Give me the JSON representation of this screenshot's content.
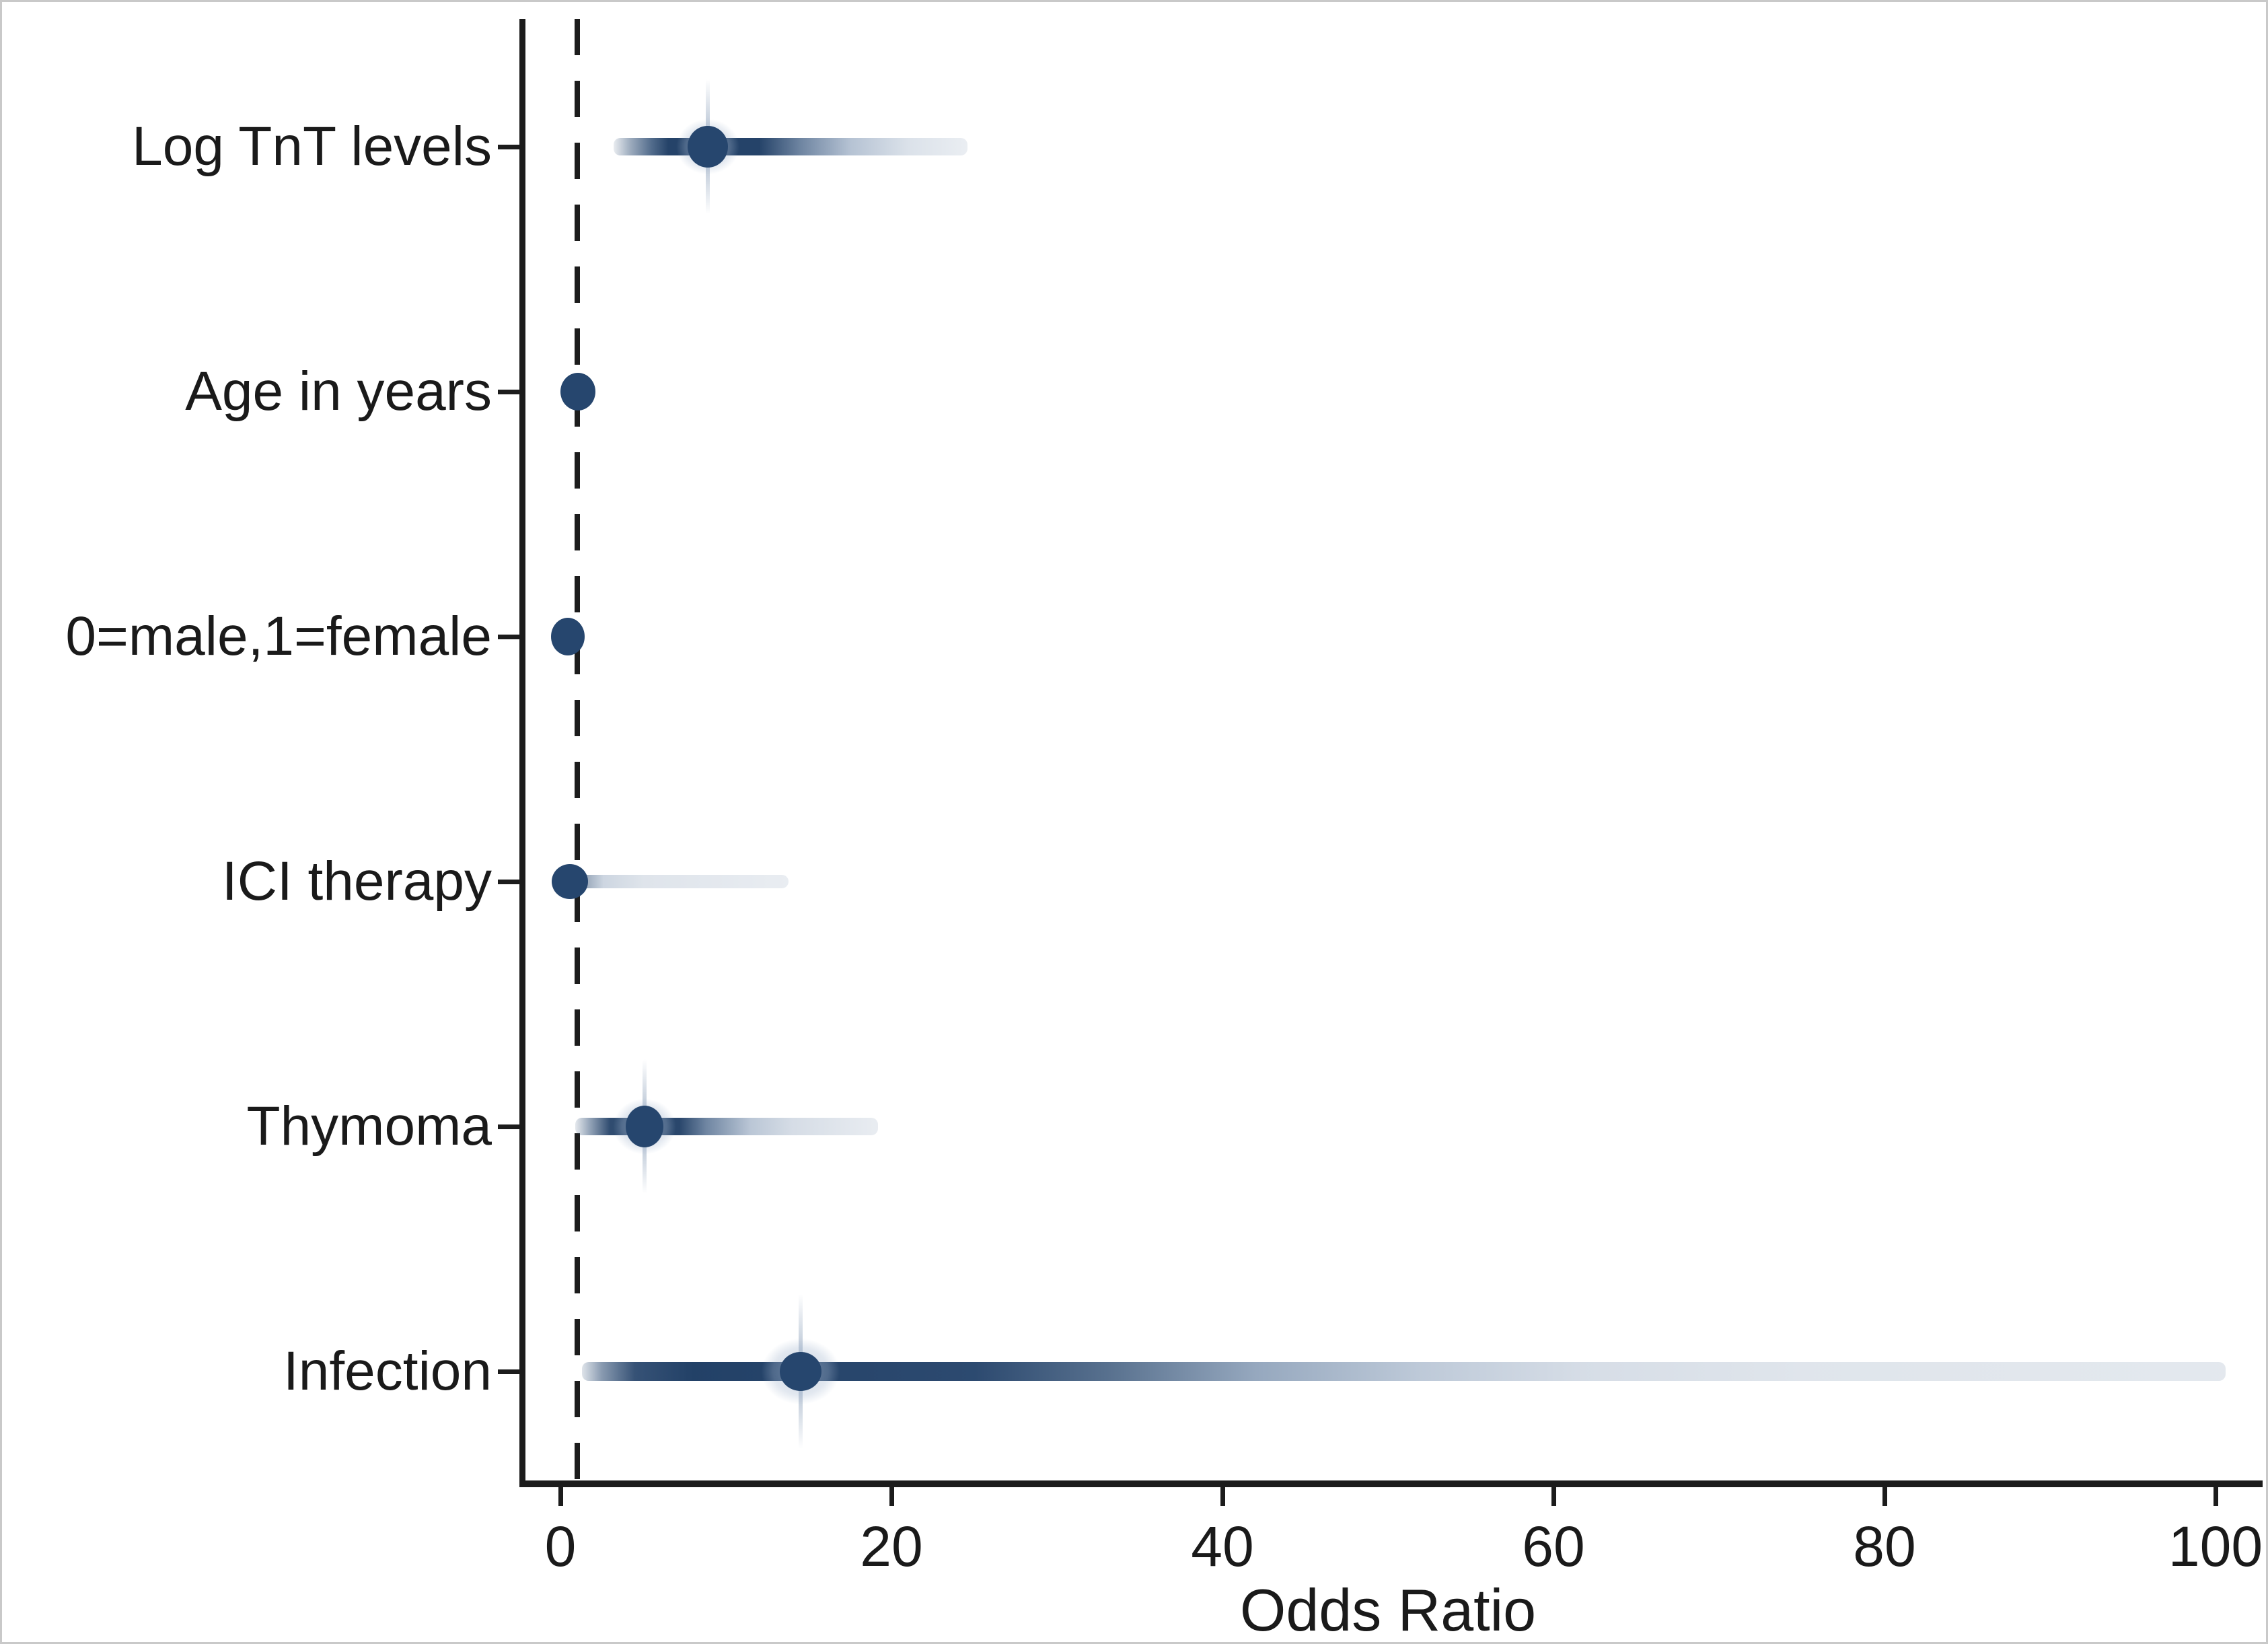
{
  "figure": {
    "background": "#ffffff",
    "border_color": "#c9c9c9"
  },
  "chart_data": {
    "type": "forest-density-strip",
    "title": "",
    "xlabel": "Odds Ratio",
    "x_ticks": [
      0,
      20,
      40,
      60,
      80,
      100
    ],
    "xlim": [
      -2.3,
      102.8
    ],
    "grid": false,
    "legend": false,
    "reference_line": {
      "at": 1,
      "style": "dashed",
      "color": "#1c1c1c"
    },
    "axis_color": "#1c1c1c",
    "text_color": "#1a1a1a",
    "point_color": "#26466e",
    "halo_color": "#a5b7cf",
    "spike_color": "#5a7396",
    "rows": [
      {
        "label": "Log TnT levels",
        "or": 8.9,
        "band": [
          3.2,
          24.6
        ],
        "dense_core": [
          6.5,
          12.0
        ],
        "band_h": 26,
        "dot": [
          60,
          62
        ],
        "spike": 200,
        "halo": [
          120,
          106
        ],
        "gradient": [
          [
            3.2,
            "rgba(39,71,111,0.10)"
          ],
          [
            4.2,
            "rgba(39,71,111,0.45)"
          ],
          [
            5.5,
            "rgba(39,71,111,0.80)"
          ],
          [
            6.5,
            "rgba(30,61,100,0.97)"
          ],
          [
            12.0,
            "rgba(30,61,100,0.97)"
          ],
          [
            14.5,
            "rgba(62,92,130,0.75)"
          ],
          [
            17.5,
            "rgba(120,144,175,0.55)"
          ],
          [
            21.0,
            "rgba(175,190,208,0.45)"
          ],
          [
            24.6,
            "rgba(203,212,223,0.40)"
          ]
        ]
      },
      {
        "label": "Age in years",
        "or": 1.05,
        "band": null,
        "band_h": 0,
        "dot": [
          52,
          56
        ],
        "spike": 0,
        "halo": null,
        "gradient": null
      },
      {
        "label": "0=male,1=female",
        "or": 0.45,
        "band": null,
        "band_h": 0,
        "dot": [
          50,
          56
        ],
        "spike": 0,
        "halo": null,
        "gradient": null
      },
      {
        "label": "ICI therapy",
        "or": 0.55,
        "band": [
          0.6,
          13.8
        ],
        "dense_core": null,
        "band_h": 20,
        "dot": [
          54,
          52
        ],
        "spike": 0,
        "halo": null,
        "gradient": [
          [
            0.6,
            "rgba(39,71,111,0.85)"
          ],
          [
            1.6,
            "rgba(39,71,111,0.45)"
          ],
          [
            2.6,
            "rgba(130,152,180,0.40)"
          ],
          [
            5.0,
            "rgba(178,191,207,0.42)"
          ],
          [
            10.0,
            "rgba(196,206,219,0.45)"
          ],
          [
            13.8,
            "rgba(203,212,223,0.42)"
          ]
        ]
      },
      {
        "label": "Thymoma",
        "or": 5.1,
        "band": [
          0.9,
          19.2
        ],
        "dense_core": [
          3.0,
          7.2
        ],
        "band_h": 26,
        "dot": [
          56,
          62
        ],
        "spike": 200,
        "halo": [
          120,
          106
        ],
        "gradient": [
          [
            0.9,
            "rgba(39,71,111,0.12)"
          ],
          [
            1.8,
            "rgba(39,71,111,0.50)"
          ],
          [
            3.0,
            "rgba(30,61,100,0.92)"
          ],
          [
            7.2,
            "rgba(30,61,100,0.95)"
          ],
          [
            8.8,
            "rgba(62,92,130,0.75)"
          ],
          [
            11.5,
            "rgba(130,152,180,0.55)"
          ],
          [
            14.0,
            "rgba(168,183,202,0.48)"
          ],
          [
            19.2,
            "rgba(200,209,221,0.40)"
          ]
        ]
      },
      {
        "label": "Infection",
        "or": 14.5,
        "band": [
          1.3,
          100.6
        ],
        "dense_core": [
          4.5,
          25.0
        ],
        "band_h": 28,
        "dot": [
          62,
          58
        ],
        "spike": 230,
        "halo": [
          150,
          126
        ],
        "gradient": [
          [
            1.3,
            "rgba(39,71,111,0.15)"
          ],
          [
            2.5,
            "rgba(39,71,111,0.55)"
          ],
          [
            4.5,
            "rgba(32,63,103,0.90)"
          ],
          [
            8.0,
            "rgba(30,61,100,0.98)"
          ],
          [
            25.0,
            "rgba(33,64,104,0.95)"
          ],
          [
            33.0,
            "rgba(58,87,122,0.85)"
          ],
          [
            42.0,
            "rgba(105,131,163,0.70)"
          ],
          [
            52.0,
            "rgba(150,169,193,0.62)"
          ],
          [
            62.0,
            "rgba(185,197,213,0.58)"
          ],
          [
            75.0,
            "rgba(198,208,220,0.55)"
          ],
          [
            100.6,
            "rgba(200,210,221,0.50)"
          ]
        ]
      }
    ]
  }
}
